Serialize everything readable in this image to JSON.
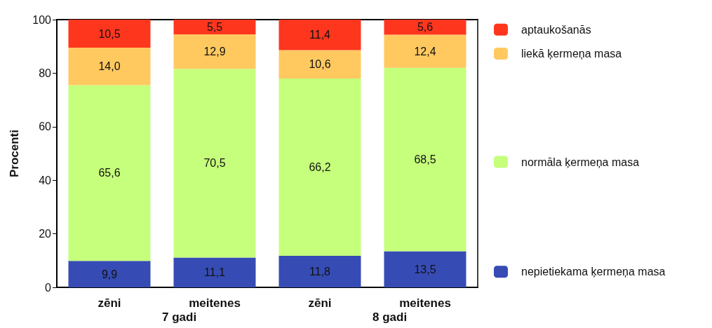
{
  "chart_data": {
    "type": "bar",
    "stacked": true,
    "ylabel": "Procenti",
    "categories": [
      "zēni",
      "meitenes",
      "zēni",
      "meitenes"
    ],
    "annotations": [
      "7 gadi",
      "8 gadi"
    ],
    "series": [
      {
        "name": "nepietiekama ķermeņa masa",
        "color": "#364cb4",
        "values": [
          9.9,
          11.1,
          11.8,
          13.5
        ],
        "value_labels": [
          "9,9",
          "11,1",
          "11,8",
          "13,5"
        ]
      },
      {
        "name": "normāla ķermeņa masa",
        "color": "#c6ff7c",
        "values": [
          65.6,
          70.5,
          66.2,
          68.5
        ],
        "value_labels": [
          "65,6",
          "70,5",
          "66,2",
          "68,5"
        ]
      },
      {
        "name": "liekā ķermeņa masa",
        "color": "#ffc960",
        "values": [
          14.0,
          12.9,
          10.6,
          12.4
        ],
        "value_labels": [
          "14,0",
          "12,9",
          "10,6",
          "12,4"
        ]
      },
      {
        "name": "aptaukošanās",
        "color": "#ff361e",
        "values": [
          10.5,
          5.5,
          11.4,
          5.6
        ],
        "value_labels": [
          "10,5",
          "5,5",
          "11,4",
          "5,6"
        ]
      }
    ],
    "ylim": [
      0,
      100
    ],
    "yticks": [
      0,
      20,
      40,
      60,
      80,
      100
    ],
    "grid": false,
    "legend": "right"
  }
}
